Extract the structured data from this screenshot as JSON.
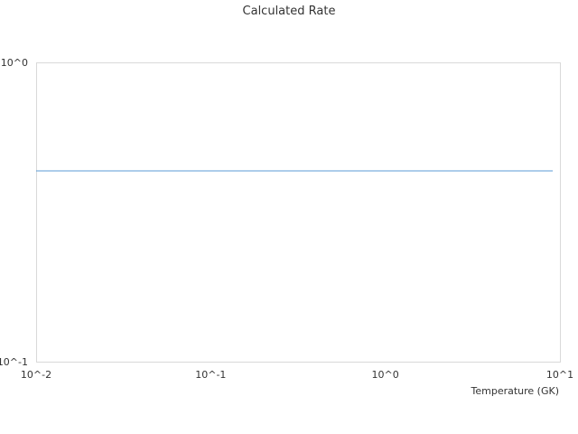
{
  "chart_data": {
    "type": "line",
    "title": "Calculated Rate",
    "xlabel": "Temperature (GK)",
    "ylabel": "",
    "x_scale": "log",
    "y_scale": "log",
    "xlim": [
      0.01,
      10
    ],
    "ylim": [
      0.1,
      1
    ],
    "x_ticks": [
      {
        "value": 0.01,
        "label": "10^-2"
      },
      {
        "value": 0.1,
        "label": "10^-1"
      },
      {
        "value": 1,
        "label": "10^0"
      },
      {
        "value": 10,
        "label": "10^1"
      }
    ],
    "y_ticks": [
      {
        "value": 0.1,
        "label": "10^-1"
      },
      {
        "value": 1,
        "label": "10^0"
      }
    ],
    "grid": false,
    "series": [
      {
        "color": "#5b9bd5",
        "x": [
          0.01,
          9.1
        ],
        "y": [
          0.434,
          0.434
        ]
      }
    ]
  }
}
